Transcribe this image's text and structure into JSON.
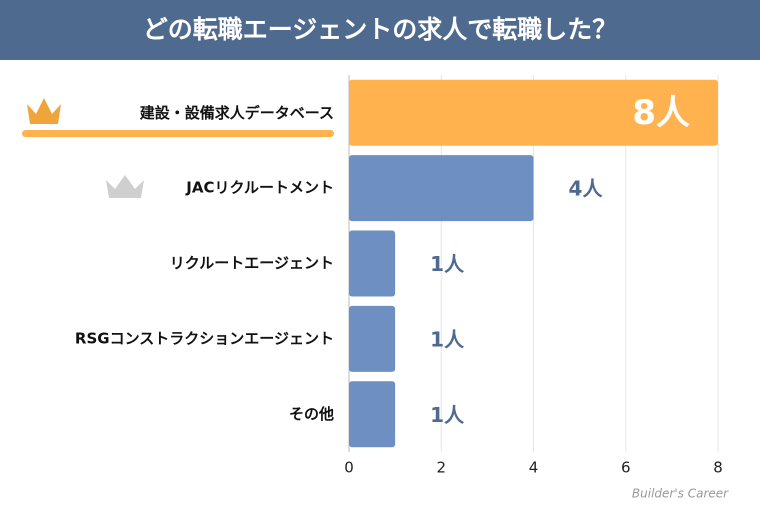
{
  "chart_data": {
    "type": "bar",
    "orientation": "horizontal",
    "title": "どの転職エージェントの求人で転職した？",
    "categories": [
      "建設・設備求人データベース",
      "JACリクルートメント",
      "リクルートエージェント",
      "RSGコンストラクションエージェント",
      "その他"
    ],
    "values": [
      8,
      4,
      1,
      1,
      1
    ],
    "value_labels": [
      "8人",
      "4人",
      "1人",
      "1人",
      "1人"
    ],
    "colors": [
      "#ffb24e",
      "#6d8fc2",
      "#6d8fc2",
      "#6d8fc2",
      "#6d8fc2"
    ],
    "xlim": [
      0,
      8
    ],
    "xticks": [
      0,
      2,
      4,
      6,
      8
    ],
    "grid": true,
    "watermark": "Builder's Career"
  }
}
